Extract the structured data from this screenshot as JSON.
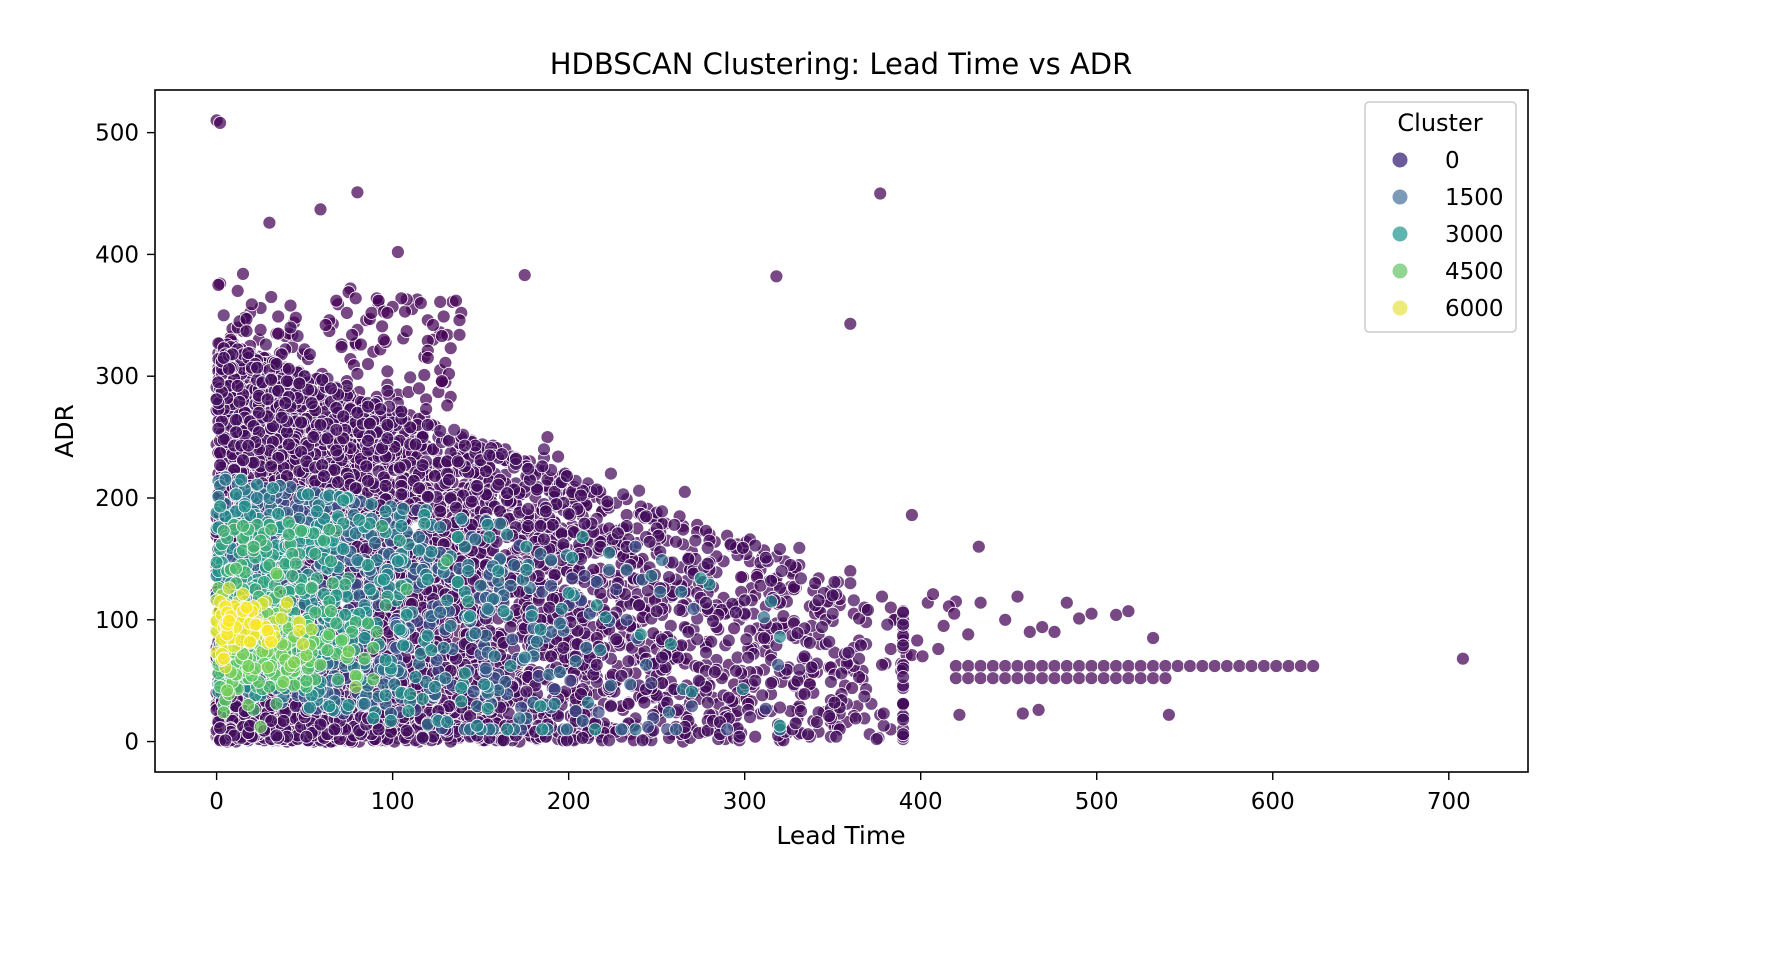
{
  "chart_data": {
    "type": "scatter",
    "title": "HDBSCAN Clustering: Lead Time vs ADR",
    "xlabel": "Lead Time",
    "ylabel": "ADR",
    "xlim": [
      -35,
      745
    ],
    "ylim": [
      -25,
      535
    ],
    "xticks": [
      0,
      100,
      200,
      300,
      400,
      500,
      600,
      700
    ],
    "yticks": [
      0,
      100,
      200,
      300,
      400,
      500
    ],
    "grid": false,
    "legend": {
      "title": "Cluster",
      "position": "top-right",
      "entries": [
        {
          "label": "0",
          "color": "#46327e"
        },
        {
          "label": "1500",
          "color": "#5c7fa6"
        },
        {
          "label": "3000",
          "color": "#3aa39b"
        },
        {
          "label": "4500",
          "color": "#78cb7a"
        },
        {
          "label": "6000",
          "color": "#e7e55a"
        }
      ]
    },
    "colormap": "viridis",
    "color_range": [
      0,
      6800
    ],
    "notable_points": [
      {
        "x": 0,
        "y": 510,
        "cluster": 0
      },
      {
        "x": 2,
        "y": 508,
        "cluster": 0
      },
      {
        "x": 80,
        "y": 451,
        "cluster": 0
      },
      {
        "x": 377,
        "y": 450,
        "cluster": 0
      },
      {
        "x": 30,
        "y": 426,
        "cluster": 0
      },
      {
        "x": 59,
        "y": 437,
        "cluster": 0
      },
      {
        "x": 103,
        "y": 402,
        "cluster": 0
      },
      {
        "x": 318,
        "y": 382,
        "cluster": 0
      },
      {
        "x": 175,
        "y": 383,
        "cluster": 0
      },
      {
        "x": 360,
        "y": 343,
        "cluster": 0
      },
      {
        "x": 395,
        "y": 186,
        "cluster": 0
      },
      {
        "x": 433,
        "y": 160,
        "cluster": 0
      },
      {
        "x": 422,
        "y": 22,
        "cluster": 0
      },
      {
        "x": 458,
        "y": 23,
        "cluster": 0
      },
      {
        "x": 467,
        "y": 26,
        "cluster": 0
      },
      {
        "x": 541,
        "y": 22,
        "cluster": 0
      },
      {
        "x": 708,
        "y": 68,
        "cluster": 0
      }
    ],
    "lead_time_tail": {
      "x_start": 420,
      "x_end": 628,
      "step": 7,
      "y_values": [
        62,
        52
      ],
      "cluster": 0
    },
    "point_count_estimate": 6000
  }
}
